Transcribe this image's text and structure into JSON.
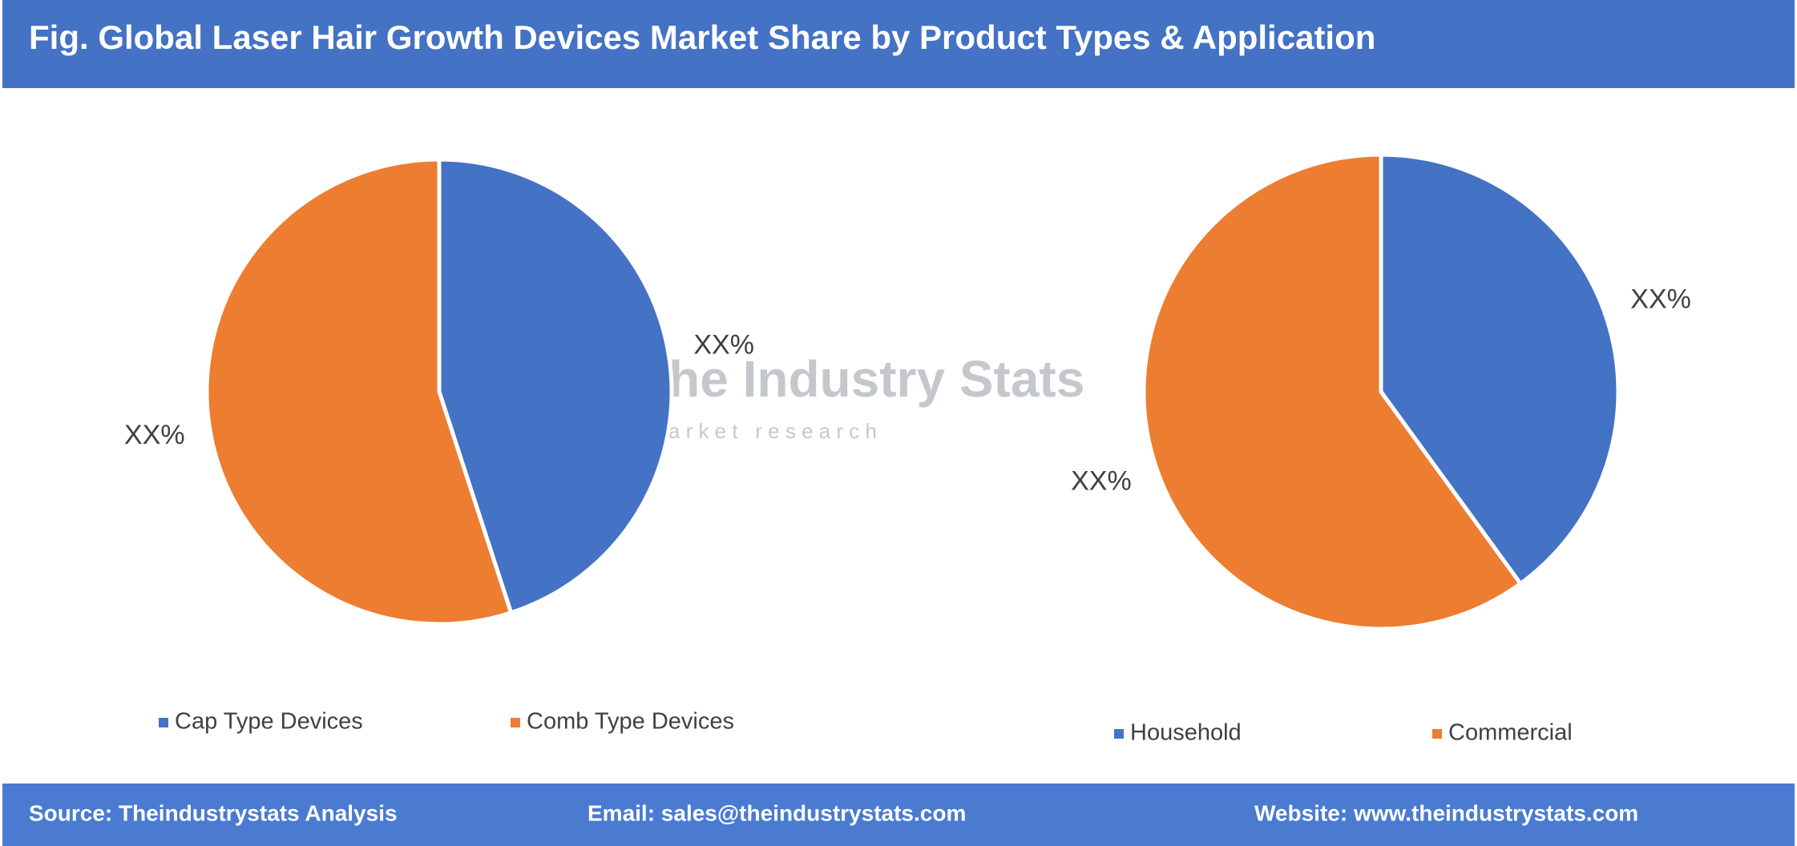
{
  "title": "Fig. Global Laser Hair Growth Devices Market Share by Product Types & Application",
  "watermark": {
    "name": "The Industry Stats",
    "tagline": "m a r k e t   r e s e a r c h"
  },
  "footer": {
    "source": "Source: Theindustrystats Analysis",
    "email": "Email: sales@theindustrystats.com",
    "website": "Website: www.theindustrystats.com"
  },
  "chart_data": [
    {
      "type": "pie",
      "categories": [
        "Cap Type Devices",
        "Comb Type Devices"
      ],
      "values": [
        45,
        55
      ],
      "value_labels": [
        "XX%",
        "XX%"
      ],
      "colors": [
        "#4472c4",
        "#ed7d31"
      ]
    },
    {
      "type": "pie",
      "categories": [
        "Household",
        "Commercial"
      ],
      "values": [
        40,
        60
      ],
      "value_labels": [
        "XX%",
        "XX%"
      ],
      "colors": [
        "#4472c4",
        "#ed7d31"
      ]
    }
  ]
}
